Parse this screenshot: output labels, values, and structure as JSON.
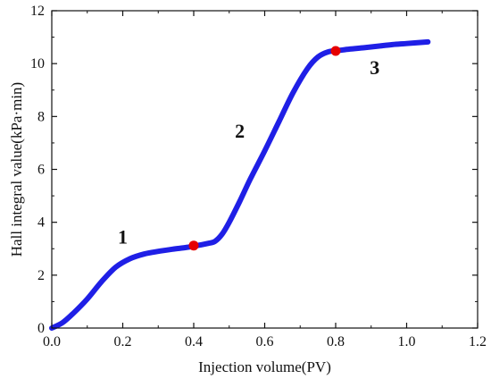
{
  "chart_data": {
    "type": "line",
    "xlabel": "Injection volume(PV)",
    "ylabel": "Hall integral value(kPa·min)",
    "xlim": [
      0.0,
      1.2
    ],
    "ylim": [
      0,
      12
    ],
    "x_ticks": [
      "0.0",
      "0.2",
      "0.4",
      "0.6",
      "0.8",
      "1.0",
      "1.2"
    ],
    "y_ticks": [
      "0",
      "2",
      "4",
      "6",
      "8",
      "10",
      "12"
    ],
    "grid": false,
    "line_color": "#1f1fe6",
    "marker_color": "#e60000",
    "series": [
      {
        "x": [
          0.0,
          0.03,
          0.06,
          0.1,
          0.14,
          0.18,
          0.22,
          0.26,
          0.3,
          0.34,
          0.38,
          0.41,
          0.44,
          0.46,
          0.48,
          0.5,
          0.53,
          0.56,
          0.6,
          0.64,
          0.68,
          0.72,
          0.75,
          0.78,
          0.81,
          0.84,
          0.88,
          0.92,
          0.96,
          1.0,
          1.06
        ],
        "y": [
          0.0,
          0.2,
          0.55,
          1.1,
          1.75,
          2.3,
          2.62,
          2.8,
          2.9,
          2.98,
          3.05,
          3.12,
          3.2,
          3.28,
          3.55,
          4.0,
          4.8,
          5.65,
          6.7,
          7.8,
          8.9,
          9.8,
          10.25,
          10.45,
          10.5,
          10.55,
          10.6,
          10.66,
          10.72,
          10.76,
          10.82
        ]
      }
    ],
    "points": [
      {
        "x": 0.4,
        "y": 3.12
      },
      {
        "x": 0.8,
        "y": 10.48
      }
    ],
    "annotations": [
      {
        "text": "1",
        "x": 0.2,
        "y": 3.2
      },
      {
        "text": "2",
        "x": 0.53,
        "y": 7.2
      },
      {
        "text": "3",
        "x": 0.91,
        "y": 9.6
      }
    ]
  }
}
